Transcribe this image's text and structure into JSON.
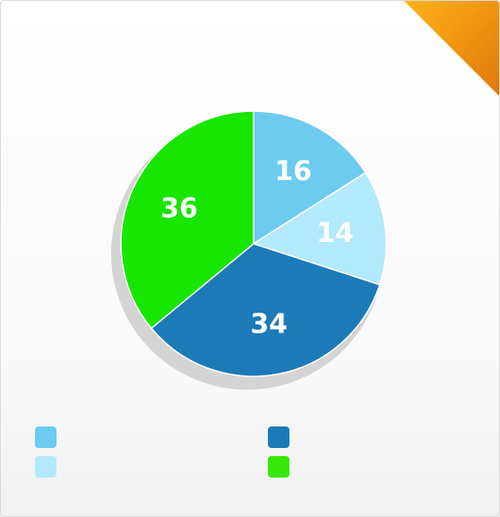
{
  "chart_data": {
    "type": "pie",
    "slices": [
      {
        "label": "",
        "value": 16,
        "value_label": "16",
        "color": "#6dcbef"
      },
      {
        "label": "",
        "value": 14,
        "value_label": "14",
        "color": "#b3e9fc"
      },
      {
        "label": "",
        "value": 34,
        "value_label": "34",
        "color": "#1c7ab8"
      },
      {
        "label": "",
        "value": 36,
        "value_label": "36",
        "color": "#17e600"
      }
    ],
    "legend_placement": "bottom",
    "legend_items": [
      {
        "text": "",
        "color": "#6dcbef"
      },
      {
        "text": "",
        "color": "#1c7ab8"
      },
      {
        "text": "",
        "color": "#b3e9fc"
      },
      {
        "text": "",
        "color": "#36e805"
      }
    ]
  },
  "decor": {
    "corner_ribbon_color": "#f39c12",
    "shadow_color": "#d4d4d4"
  }
}
